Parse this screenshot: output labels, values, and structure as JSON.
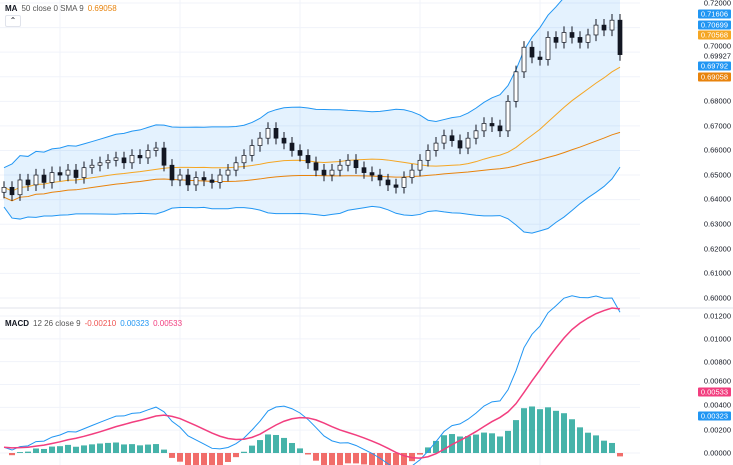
{
  "price_legend": {
    "name": "MA",
    "params": "50 close 0 SMA 9",
    "value": "0.69058"
  },
  "macd_legend": {
    "name": "MACD",
    "params": "12 26 close 9",
    "hist": "-0.00210",
    "macd": "0.00323",
    "signal": "0.00533"
  },
  "collapse_icon": "chevron-up-icon",
  "price_axis": [
    "0.72000",
    "0.70000",
    "0.68000",
    "0.67000",
    "0.66000",
    "0.65000",
    "0.64000",
    "0.63000",
    "0.62000",
    "0.61000",
    "0.60000"
  ],
  "macd_axis": [
    "0.01200",
    "0.01000",
    "0.00800",
    "0.00600",
    "0.00400",
    "0.00200",
    "0.00000"
  ],
  "price_tags": [
    {
      "v": "0.71606",
      "color": "#2196f3"
    },
    {
      "v": "0.70699",
      "color": "#2196f3"
    },
    {
      "v": "0.70568",
      "color": "#f5a623"
    },
    {
      "v": "0.69927",
      "color": ""
    },
    {
      "v": "0.69792",
      "color": "#2196f3"
    },
    {
      "v": "0.69058",
      "color": "#e8830c"
    }
  ],
  "macd_tags": [
    {
      "v": "0.00533",
      "color": "#f23e7f"
    },
    {
      "v": "0.00323",
      "color": "#2196f3"
    }
  ],
  "colors": {
    "up": "#ffffff",
    "down": "#131722",
    "bb": "#2196f3",
    "bbfill": "#2196f31f",
    "sma": "#f5a623",
    "ma50": "#e8830c",
    "macd": "#2196f3",
    "signal": "#f23e7f",
    "histUp": "#26a69a",
    "histDown": "#ef5350"
  },
  "chart_data": {
    "type": "candlestick",
    "ylim": [
      0.6,
      0.72
    ],
    "macd_ylim": [
      -0.0005,
      0.012
    ],
    "close": [
      0.645,
      0.642,
      0.648,
      0.646,
      0.65,
      0.647,
      0.651,
      0.65,
      0.652,
      0.649,
      0.653,
      0.654,
      0.655,
      0.656,
      0.657,
      0.655,
      0.658,
      0.657,
      0.66,
      0.661,
      0.654,
      0.648,
      0.65,
      0.646,
      0.649,
      0.648,
      0.647,
      0.65,
      0.652,
      0.655,
      0.658,
      0.662,
      0.665,
      0.669,
      0.665,
      0.663,
      0.66,
      0.658,
      0.655,
      0.652,
      0.65,
      0.652,
      0.654,
      0.656,
      0.653,
      0.651,
      0.65,
      0.648,
      0.646,
      0.645,
      0.649,
      0.652,
      0.656,
      0.66,
      0.663,
      0.666,
      0.664,
      0.661,
      0.665,
      0.668,
      0.671,
      0.67,
      0.668,
      0.68,
      0.692,
      0.702,
      0.698,
      0.697,
      0.706,
      0.704,
      0.708,
      0.706,
      0.704,
      0.707,
      0.711,
      0.709,
      0.713,
      0.699
    ]
  }
}
